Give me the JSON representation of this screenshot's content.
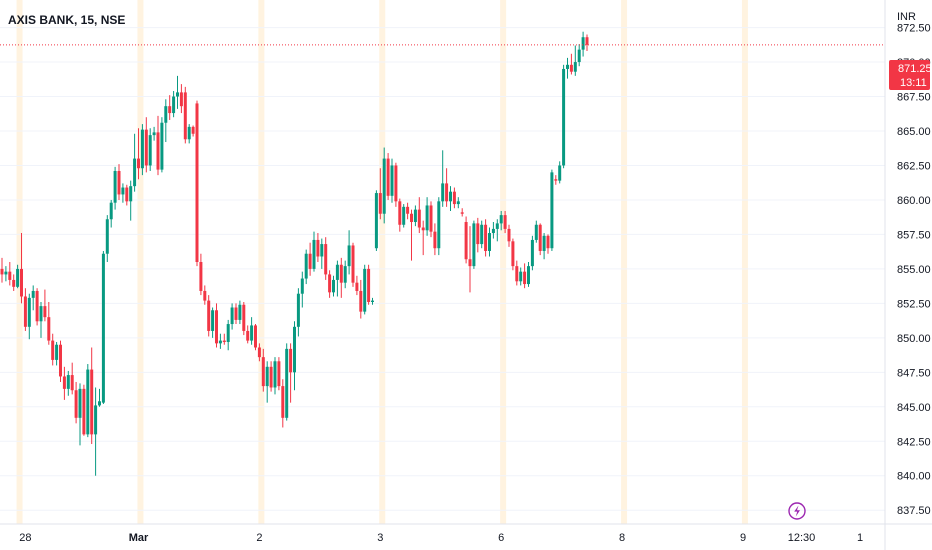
{
  "header": {
    "symbol_title": "AXIS BANK, 15, NSE",
    "currency": "INR"
  },
  "price_tag": {
    "price": "871.25",
    "countdown": "13:11",
    "color": "#f23645"
  },
  "colors": {
    "up": "#089981",
    "down": "#f23645",
    "grid": "#f0f3fa",
    "last_line": "#f23645",
    "session": "#fff3e0",
    "lightning": "#9c27b0"
  },
  "icons": {
    "bolt": "lightning-icon"
  },
  "chart_data": {
    "type": "candlestick",
    "title": "AXIS BANK, 15, NSE",
    "ylabel": "INR",
    "ylim": [
      836.5,
      874.5
    ],
    "yticks": [
      872.5,
      870.0,
      867.5,
      865.0,
      862.5,
      860.0,
      857.5,
      855.0,
      852.5,
      850.0,
      847.5,
      845.0,
      842.5,
      840.0,
      837.5
    ],
    "ytick_labels": [
      "872.50",
      "870.00",
      "867.50",
      "865.00",
      "862.50",
      "860.00",
      "857.50",
      "855.00",
      "852.50",
      "850.00",
      "847.50",
      "845.00",
      "842.50",
      "840.00",
      "837.50"
    ],
    "xlabels": [
      {
        "label": "28",
        "bar": 6
      },
      {
        "label": "Mar",
        "bar": 35
      },
      {
        "label": "2",
        "bar": 66
      },
      {
        "label": "3",
        "bar": 97
      },
      {
        "label": "6",
        "bar": 128
      },
      {
        "label": "8",
        "bar": 159
      },
      {
        "label": "9",
        "bar": 190
      },
      {
        "label": "12:30",
        "bar": 205
      },
      {
        "label": "1",
        "bar": 220
      }
    ],
    "session_breaks": [
      5,
      36,
      67,
      98,
      129,
      160,
      191
    ],
    "last_price": 871.25,
    "candles": [
      [
        855.0,
        855.8,
        854.0,
        854.6
      ],
      [
        854.6,
        855.2,
        854.1,
        854.8
      ],
      [
        854.8,
        855.5,
        853.8,
        854.2
      ],
      [
        854.2,
        854.6,
        853.4,
        853.7
      ],
      [
        853.7,
        855.3,
        853.6,
        855.0
      ],
      [
        855.0,
        857.6,
        852.5,
        853.0
      ],
      [
        853.0,
        853.6,
        850.5,
        850.8
      ],
      [
        850.8,
        853.2,
        849.9,
        852.9
      ],
      [
        852.9,
        853.8,
        852.0,
        853.4
      ],
      [
        853.4,
        853.6,
        850.9,
        851.2
      ],
      [
        851.2,
        852.6,
        850.0,
        852.3
      ],
      [
        852.3,
        853.5,
        851.2,
        851.5
      ],
      [
        851.5,
        852.6,
        849.5,
        849.8
      ],
      [
        849.8,
        850.3,
        848.0,
        848.4
      ],
      [
        848.4,
        849.7,
        848.0,
        849.5
      ],
      [
        849.5,
        849.8,
        846.8,
        847.2
      ],
      [
        847.2,
        847.9,
        845.5,
        846.3
      ],
      [
        846.3,
        847.6,
        845.8,
        847.3
      ],
      [
        847.3,
        848.2,
        845.9,
        846.2
      ],
      [
        846.2,
        846.8,
        843.8,
        844.2
      ],
      [
        844.2,
        846.7,
        842.2,
        846.3
      ],
      [
        846.3,
        846.6,
        842.9,
        843.0
      ],
      [
        843.0,
        848.1,
        842.8,
        847.7
      ],
      [
        847.7,
        849.3,
        842.3,
        843.0
      ],
      [
        843.0,
        846.4,
        840.0,
        845.1
      ],
      [
        845.1,
        846.3,
        845.0,
        845.4
      ],
      [
        845.3,
        856.3,
        845.2,
        856.1
      ],
      [
        856.1,
        858.9,
        855.5,
        858.6
      ],
      [
        858.6,
        860.0,
        858.0,
        859.8
      ],
      [
        859.8,
        862.4,
        859.3,
        862.1
      ],
      [
        862.1,
        862.6,
        860.0,
        860.4
      ],
      [
        860.4,
        861.2,
        859.8,
        860.9
      ],
      [
        860.9,
        861.1,
        859.6,
        859.9
      ],
      [
        859.9,
        861.4,
        858.5,
        861.0
      ],
      [
        861.0,
        864.8,
        860.6,
        863.0
      ],
      [
        863.0,
        865.2,
        861.5,
        862.3
      ],
      [
        862.3,
        865.5,
        861.8,
        865.1
      ],
      [
        865.1,
        866.0,
        862.0,
        862.5
      ],
      [
        862.5,
        865.2,
        862.1,
        864.7
      ],
      [
        864.7,
        865.3,
        864.3,
        864.9
      ],
      [
        864.9,
        866.1,
        861.8,
        862.2
      ],
      [
        862.2,
        866.0,
        862.0,
        865.6
      ],
      [
        865.6,
        867.3,
        864.2,
        866.8
      ],
      [
        866.8,
        867.6,
        865.8,
        866.3
      ],
      [
        866.3,
        867.9,
        866.0,
        867.5
      ],
      [
        867.5,
        869.0,
        866.6,
        867.8
      ],
      [
        867.8,
        868.4,
        866.3,
        866.8
      ],
      [
        867.8,
        868.2,
        864.1,
        864.4
      ],
      [
        864.4,
        865.5,
        864.1,
        865.3
      ],
      [
        865.3,
        865.4,
        864.6,
        864.8
      ],
      [
        867.0,
        867.2,
        855.2,
        855.5
      ],
      [
        855.5,
        856.1,
        853.1,
        853.4
      ],
      [
        853.4,
        853.8,
        852.4,
        852.7
      ],
      [
        852.7,
        853.1,
        850.1,
        850.5
      ],
      [
        850.5,
        852.2,
        850.0,
        852.0
      ],
      [
        852.0,
        852.5,
        849.3,
        849.6
      ],
      [
        849.6,
        850.3,
        849.2,
        849.8
      ],
      [
        849.8,
        850.3,
        849.5,
        849.7
      ],
      [
        849.7,
        851.3,
        849.1,
        851.0
      ],
      [
        851.0,
        852.5,
        850.6,
        852.2
      ],
      [
        852.2,
        852.5,
        851.0,
        851.3
      ],
      [
        851.3,
        852.7,
        851.0,
        852.4
      ],
      [
        852.4,
        852.6,
        850.2,
        850.5
      ],
      [
        850.5,
        850.9,
        849.6,
        849.8
      ],
      [
        849.8,
        851.5,
        849.5,
        850.9
      ],
      [
        850.9,
        851.0,
        849.1,
        849.3
      ],
      [
        849.3,
        849.6,
        848.3,
        848.6
      ],
      [
        848.6,
        849.2,
        846.1,
        846.5
      ],
      [
        846.5,
        848.3,
        845.3,
        847.9
      ],
      [
        847.9,
        848.3,
        846.1,
        846.4
      ],
      [
        846.4,
        848.6,
        845.9,
        848.3
      ],
      [
        848.3,
        848.6,
        846.2,
        846.5
      ],
      [
        846.5,
        847.0,
        843.5,
        844.2
      ],
      [
        844.2,
        849.6,
        844.0,
        849.2
      ],
      [
        849.2,
        849.6,
        845.3,
        847.5
      ],
      [
        847.5,
        851.2,
        846.2,
        850.8
      ],
      [
        850.8,
        853.6,
        850.1,
        853.2
      ],
      [
        853.2,
        854.8,
        852.2,
        854.3
      ],
      [
        854.3,
        856.4,
        853.9,
        856.1
      ],
      [
        856.1,
        856.9,
        854.5,
        855.0
      ],
      [
        855.0,
        857.7,
        854.8,
        857.1
      ],
      [
        857.1,
        857.6,
        855.5,
        855.9
      ],
      [
        855.9,
        857.2,
        855.0,
        856.8
      ],
      [
        856.8,
        857.3,
        854.2,
        854.6
      ],
      [
        854.6,
        854.9,
        852.9,
        853.3
      ],
      [
        853.3,
        854.5,
        853.0,
        854.2
      ],
      [
        854.2,
        855.6,
        853.0,
        855.3
      ],
      [
        855.3,
        855.8,
        852.9,
        854.0
      ],
      [
        854.0,
        855.6,
        853.6,
        855.2
      ],
      [
        855.2,
        857.8,
        854.6,
        856.7
      ],
      [
        856.7,
        856.9,
        853.7,
        854.0
      ],
      [
        854.0,
        854.5,
        853.1,
        853.4
      ],
      [
        853.4,
        854.2,
        851.4,
        851.9
      ],
      [
        851.9,
        855.3,
        851.7,
        855.0
      ],
      [
        855.0,
        855.3,
        852.4,
        852.6
      ],
      [
        852.6,
        852.9,
        852.4,
        852.7
      ],
      [
        856.5,
        860.7,
        856.3,
        860.5
      ],
      [
        860.5,
        862.3,
        858.6,
        859.0
      ],
      [
        859.0,
        863.8,
        858.3,
        863.0
      ],
      [
        863.0,
        863.4,
        860.0,
        860.3
      ],
      [
        860.3,
        863.0,
        859.8,
        862.5
      ],
      [
        862.5,
        862.7,
        859.5,
        859.9
      ],
      [
        859.9,
        860.1,
        857.7,
        858.2
      ],
      [
        858.2,
        859.7,
        858.0,
        859.5
      ],
      [
        859.5,
        859.8,
        858.6,
        859.0
      ],
      [
        859.0,
        859.3,
        855.6,
        858.4
      ],
      [
        858.4,
        859.6,
        858.1,
        859.3
      ],
      [
        859.3,
        860.2,
        857.6,
        858.0
      ],
      [
        858.0,
        858.5,
        856.0,
        857.8
      ],
      [
        857.8,
        860.2,
        857.4,
        859.6
      ],
      [
        859.6,
        859.9,
        857.3,
        857.7
      ],
      [
        857.7,
        858.3,
        856.0,
        856.5
      ],
      [
        856.5,
        860.2,
        856.0,
        859.9
      ],
      [
        859.9,
        863.6,
        859.5,
        861.2
      ],
      [
        861.2,
        862.3,
        859.5,
        859.9
      ],
      [
        859.9,
        861.0,
        859.2,
        860.6
      ],
      [
        860.6,
        860.9,
        859.4,
        859.7
      ],
      [
        859.7,
        860.2,
        859.4,
        859.9
      ],
      [
        859.1,
        859.4,
        858.8,
        859.0
      ],
      [
        858.4,
        858.8,
        855.4,
        855.7
      ],
      [
        855.7,
        858.1,
        853.3,
        855.2
      ],
      [
        855.2,
        858.5,
        855.0,
        858.3
      ],
      [
        858.3,
        858.7,
        856.2,
        856.8
      ],
      [
        856.8,
        858.5,
        856.5,
        858.2
      ],
      [
        858.2,
        858.6,
        855.9,
        856.3
      ],
      [
        856.3,
        858.0,
        855.9,
        857.6
      ],
      [
        857.6,
        858.4,
        857.2,
        857.9
      ],
      [
        857.9,
        858.6,
        857.0,
        858.3
      ],
      [
        858.3,
        859.2,
        857.8,
        858.9
      ],
      [
        858.9,
        859.2,
        857.6,
        857.9
      ],
      [
        857.9,
        858.2,
        856.6,
        857.0
      ],
      [
        857.0,
        857.2,
        854.9,
        855.2
      ],
      [
        855.2,
        855.6,
        853.8,
        854.1
      ],
      [
        854.1,
        855.1,
        853.8,
        854.8
      ],
      [
        854.8,
        855.4,
        853.6,
        853.9
      ],
      [
        853.9,
        855.5,
        853.7,
        855.2
      ],
      [
        855.2,
        857.4,
        854.9,
        857.1
      ],
      [
        857.1,
        858.5,
        856.9,
        858.2
      ],
      [
        858.2,
        858.3,
        856.0,
        856.3
      ],
      [
        856.3,
        857.6,
        855.7,
        857.4
      ],
      [
        857.4,
        857.5,
        856.1,
        856.5
      ],
      [
        856.5,
        862.2,
        856.3,
        862.0
      ],
      [
        861.5,
        861.8,
        861.1,
        861.4
      ],
      [
        861.4,
        862.8,
        861.2,
        862.5
      ],
      [
        862.5,
        869.8,
        862.3,
        869.5
      ],
      [
        869.5,
        870.3,
        868.8,
        869.8
      ],
      [
        869.8,
        870.6,
        869.1,
        869.3
      ],
      [
        869.3,
        871.2,
        869.0,
        870.0
      ],
      [
        870.0,
        871.3,
        869.7,
        870.9
      ],
      [
        870.9,
        872.2,
        870.4,
        871.8
      ],
      [
        871.8,
        872.0,
        870.8,
        871.25
      ]
    ]
  }
}
